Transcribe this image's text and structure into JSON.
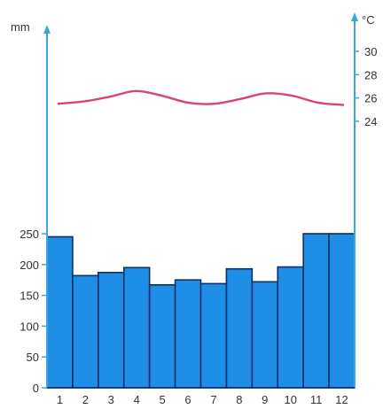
{
  "chart_data": {
    "type": "bar",
    "title": "",
    "categories": [
      "1",
      "2",
      "3",
      "4",
      "5",
      "6",
      "7",
      "8",
      "9",
      "10",
      "11",
      "12"
    ],
    "series": [
      {
        "kind": "bar",
        "axis": "left",
        "values": [
          245,
          182,
          187,
          195,
          167,
          175,
          169,
          193,
          172,
          196,
          250,
          250
        ]
      },
      {
        "kind": "line",
        "axis": "right",
        "values": [
          25.5,
          25.7,
          26.1,
          26.6,
          26.2,
          25.6,
          25.5,
          25.9,
          26.4,
          26.2,
          25.6,
          25.4
        ]
      }
    ],
    "left_axis": {
      "label": "mm",
      "ticks": [
        0,
        50,
        100,
        150,
        200,
        250
      ],
      "range": [
        0,
        250
      ]
    },
    "right_axis": {
      "label": "°C",
      "ticks": [
        24,
        26,
        28,
        30
      ],
      "range": [
        24,
        30
      ]
    },
    "colors": {
      "bars": "#1f8ee6",
      "bar_edge": "#0d2f6b",
      "line": "#d8466e",
      "axis": "#3fa6d8"
    },
    "grid": false,
    "legend": "none"
  }
}
